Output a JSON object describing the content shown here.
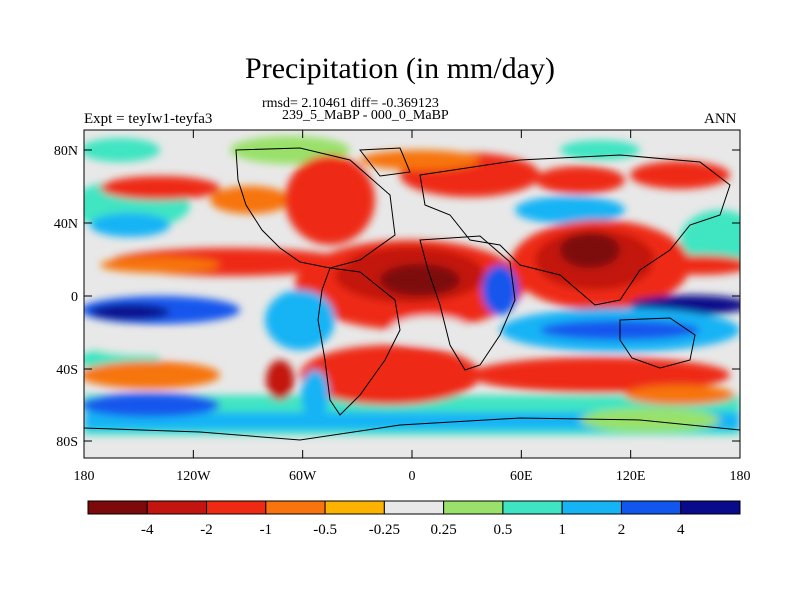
{
  "title": "Precipitation (in mm/day)",
  "stats_line": "rmsd= 2.10461 diff= -0.369123",
  "periods_line": "239_5_MaBP - 000_0_MaBP",
  "left_label": "Expt = teyIw1-teyfa3",
  "right_label": "ANN",
  "map": {
    "x_ticks": [
      "180",
      "120W",
      "60W",
      "0",
      "60E",
      "120E",
      "180"
    ],
    "y_ticks": [
      "80N",
      "40N",
      "0",
      "40S",
      "80S"
    ]
  },
  "colorbar": {
    "colors": [
      "#7d0a0a",
      "#c3150f",
      "#ee2a12",
      "#f7740f",
      "#fbb300",
      "#e8e8e8",
      "#99e16a",
      "#3fe5c2",
      "#16b4f5",
      "#1257ed",
      "#0a0a8c"
    ],
    "labels": [
      "-4",
      "-2",
      "-1",
      "-0.5",
      "-0.25",
      "0.25",
      "0.5",
      "1",
      "2",
      "4"
    ]
  }
}
